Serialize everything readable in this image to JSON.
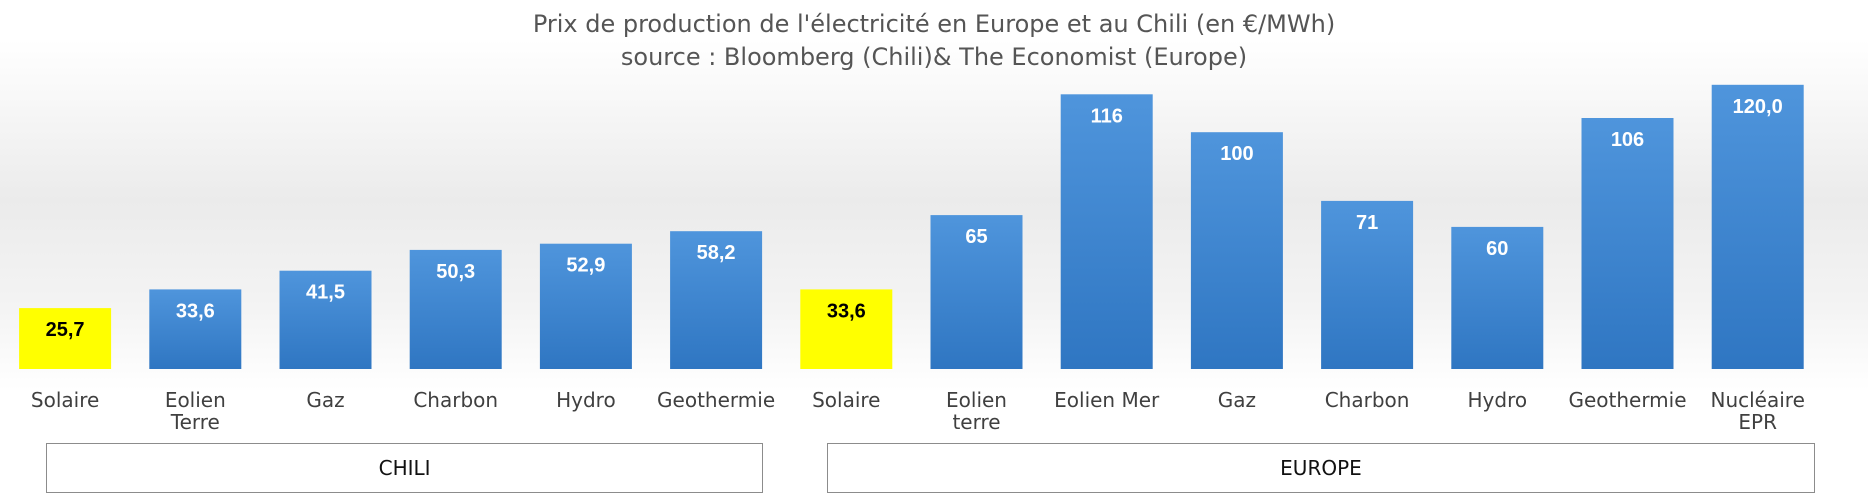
{
  "chart_data": {
    "type": "bar",
    "title": "Prix de production de l'électricité en Europe et au Chili (en €/MWh)",
    "subtitle": "source : Bloomberg (Chili)& The Economist (Europe)",
    "categories": [
      "Solaire",
      "Eolien Terre",
      "Gaz",
      "Charbon",
      "Hydro",
      "Geothermie",
      "Solaire",
      "Eolien terre",
      "Eolien Mer",
      "Gaz",
      "Charbon",
      "Hydro",
      "Geothermie",
      "Nucléaire EPR"
    ],
    "values": [
      25.7,
      33.6,
      41.5,
      50.3,
      52.9,
      58.2,
      33.6,
      65,
      116,
      100,
      71,
      60,
      106,
      120.0
    ],
    "value_labels": [
      "25,7",
      "33,6",
      "41,5",
      "50,3",
      "52,9",
      "58,2",
      "33,6",
      "65",
      "116",
      "100",
      "71",
      "60",
      "106",
      "120,0"
    ],
    "groups": [
      {
        "label": "CHILI",
        "count": 6
      },
      {
        "label": "EUROPE",
        "count": 8
      }
    ],
    "highlighted": [
      0,
      6
    ],
    "ylim": [
      0,
      125
    ],
    "grid": false,
    "legend": "none",
    "colors": {
      "bar": "#4a90d9",
      "bar_dark": "#2e74c0",
      "highlight": "#ffff00",
      "value_label": "#ffffff",
      "value_label_highlight": "#000000",
      "category_label": "#404040",
      "title": "#555555"
    }
  }
}
